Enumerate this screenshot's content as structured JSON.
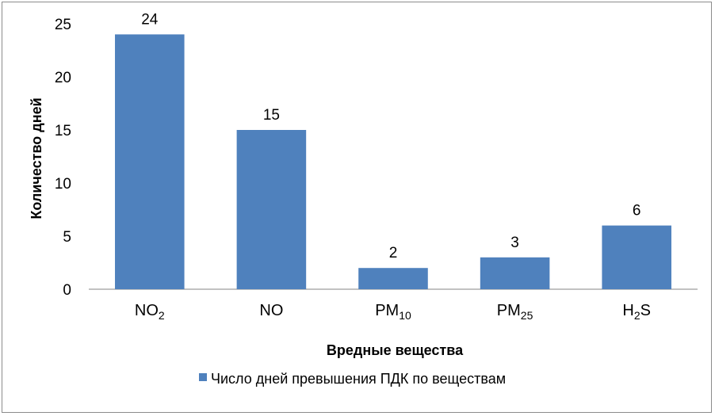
{
  "chart_data": {
    "type": "bar",
    "categories": [
      {
        "base": "NO",
        "sub": "2",
        "tail": ""
      },
      {
        "base": "NO",
        "sub": "",
        "tail": ""
      },
      {
        "base": "PM",
        "sub": "10",
        "tail": ""
      },
      {
        "base": "PM",
        "sub": "25",
        "tail": ""
      },
      {
        "base": "H",
        "sub": "2",
        "tail": "S"
      }
    ],
    "series": [
      {
        "name": "Число дней превышения ПДК по веществам",
        "values": [
          24,
          15,
          2,
          3,
          6
        ],
        "color": "#4f81bd"
      }
    ],
    "xlabel": "Вредные вещества",
    "ylabel": "Количество дней",
    "ylim": [
      0,
      25
    ],
    "yticks": [
      0,
      5,
      10,
      15,
      20,
      25
    ],
    "grid": false,
    "legend": "bottom"
  }
}
